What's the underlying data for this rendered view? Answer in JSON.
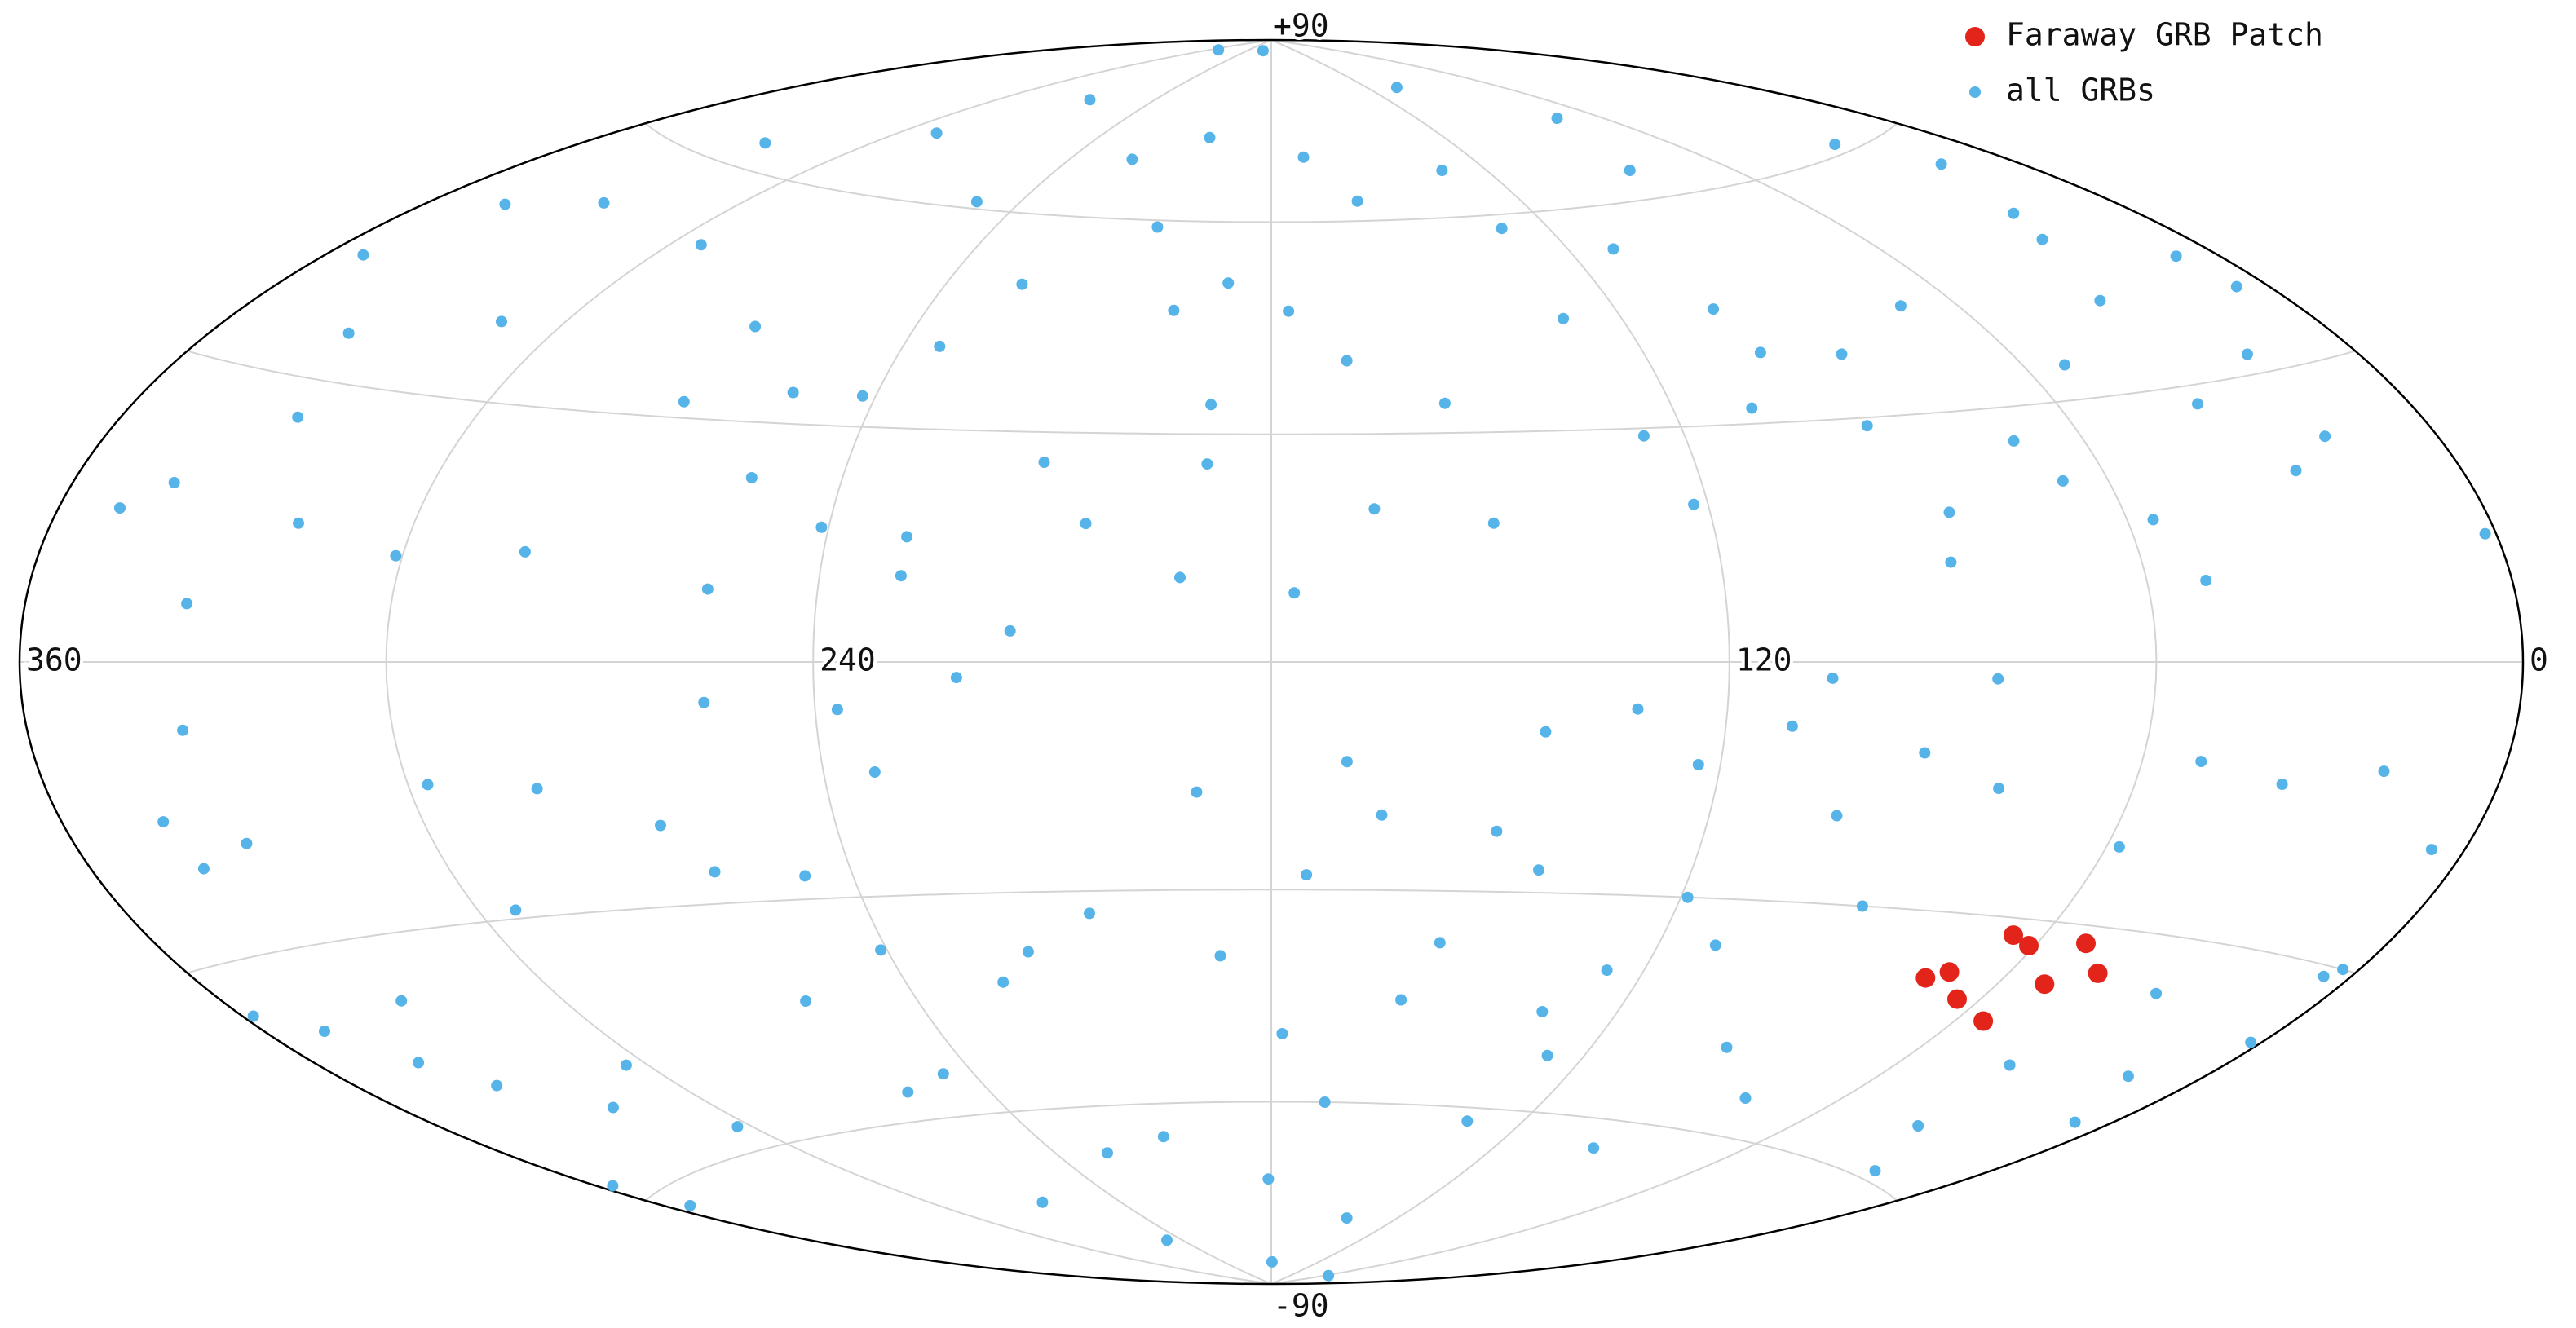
{
  "chart_data": {
    "type": "scatter",
    "projection": "hammer",
    "grid": true,
    "legend": "upper right",
    "xlim": [
      360,
      0
    ],
    "ylim": [
      -90,
      90
    ],
    "xticks": [
      360,
      240,
      120,
      0
    ],
    "yticks": [
      {
        "value": 90,
        "label": "+90"
      },
      -90
    ],
    "series": [
      {
        "name": "Faraway GRB Patch",
        "color": "#e3241b",
        "x": [
          65,
          61,
          52,
          45,
          70,
          73,
          64,
          52,
          55
        ],
        "values": [
          -32,
          -33,
          -32,
          -35,
          -37,
          -38,
          -40,
          -37,
          -42
        ]
      },
      {
        "name": "all GRBs",
        "color": "#56b4e9",
        "x": [
          202,
          290,
          324,
          290,
          268,
          202,
          104,
          73,
          25,
          15,
          345,
          327,
          353,
          335,
          329,
          349,
          342,
          332,
          318,
          301,
          282,
          255,
          311,
          294,
          267,
          269,
          253,
          241,
          250,
          226,
          234,
          212,
          214,
          229,
          188,
          189,
          177,
          170,
          166,
          154,
          130,
          111,
          108,
          122,
          150,
          126,
          106,
          88,
          23,
          27,
          8,
          6,
          20,
          29,
          20,
          2,
          51,
          56,
          67,
          92,
          101,
          70,
          333,
          342,
          340,
          330,
          358,
          349,
          328,
          334,
          320,
          357,
          355,
          294,
          265,
          297,
          281,
          255,
          237,
          233,
          259,
          246,
          267,
          226,
          249,
          188,
          190,
          207,
          224,
          181,
          179,
          170,
          165,
          158,
          168,
          143,
          56,
          133,
          144,
          149,
          123,
          111,
          102,
          132,
          119,
          126,
          95,
          95,
          22,
          35,
          7,
          14,
          2,
          5,
          3,
          6,
          21,
          37,
          51,
          80,
          92,
          83,
          58,
          31,
          39,
          79,
          92,
          111,
          127,
          154,
          133,
          208,
          257,
          303,
          341,
          304,
          218,
          221,
          260,
          247,
          241,
          178,
          175,
          142,
          222,
          197,
          177,
          168,
          130,
          103,
          88,
          84,
          132,
          159,
          205,
          242,
          253,
          229,
          192,
          205,
          189,
          86,
          71,
          53,
          37,
          34
        ],
        "values": [
          88,
          87,
          63,
          69,
          77,
          73,
          80,
          72,
          61,
          56,
          50,
          53,
          42,
          35,
          26,
          15,
          18,
          6,
          15,
          12,
          13,
          9,
          39,
          51,
          42,
          32,
          23,
          17,
          61,
          50,
          41,
          26,
          4,
          11,
          51,
          34,
          9,
          70,
          20,
          34,
          58,
          54,
          32,
          20,
          18,
          29,
          -2,
          12,
          50,
          47,
          42,
          38,
          32,
          20,
          23,
          12,
          9,
          16,
          21,
          29,
          39,
          43,
          -7,
          -16,
          -21,
          -19,
          -35,
          -38,
          -37,
          -47,
          -52,
          -58,
          -62,
          -29,
          -20,
          -14,
          -15,
          -5,
          -6,
          -14,
          -43,
          -54,
          -73,
          -67,
          -81,
          -39,
          -17,
          -33,
          -42,
          -72,
          -86,
          -13,
          -20,
          -45,
          -60,
          -78,
          -87,
          -62,
          -9,
          -22,
          -13,
          -8,
          -19,
          -6,
          -30,
          -40,
          -49,
          -64,
          -59,
          -54,
          -49,
          -44,
          -38,
          -31,
          -30,
          -18,
          -11,
          -13,
          -11,
          -15,
          -11,
          -2,
          -21,
          -36,
          -46,
          -55,
          -30,
          -36,
          -52,
          -37,
          -46,
          -65,
          -56,
          -57,
          -43,
          -48,
          -38,
          -2,
          -26,
          -27,
          -37,
          -50,
          -28,
          -27,
          69,
          47,
          47,
          40,
          45,
          45,
          38,
          64,
          67,
          63,
          59,
          34,
          34,
          16,
          11,
          18,
          26,
          18,
          26,
          34,
          28,
          40
        ]
      }
    ]
  }
}
